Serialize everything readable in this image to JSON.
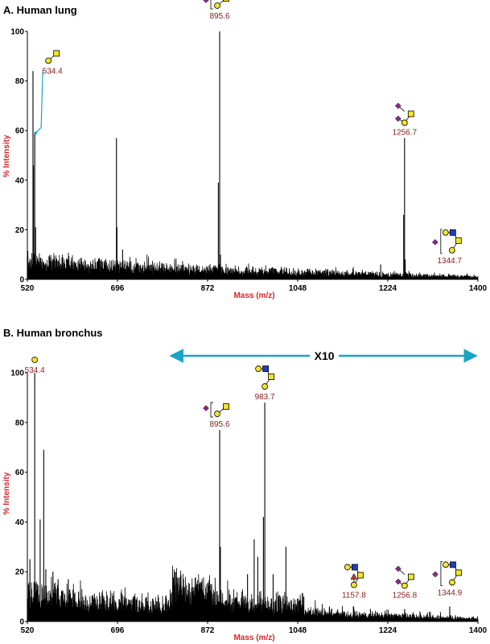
{
  "colors": {
    "axis_title": "#d62728",
    "peak_label": "#8b1a1a",
    "galactose": "#f2e52a",
    "galnac": "#f2e52a",
    "glcnac": "#1f3fbf",
    "sialic_acid": "#8b2a8b",
    "fucose": "#c0392b",
    "arrow": "#1aa3c4"
  },
  "chart_data": [
    {
      "type": "line",
      "title": "A. Human lung",
      "xlabel": "Mass (m/z)",
      "ylabel": "% Intensity",
      "xlim": [
        520,
        1400
      ],
      "ylim": [
        0,
        100
      ],
      "x_ticks": [
        520,
        696,
        872,
        1048,
        1224,
        1400
      ],
      "y_ticks": [
        0,
        20,
        40,
        60,
        80,
        100
      ],
      "grid": false,
      "baseline": {
        "start": 9,
        "end": 1,
        "noise": 3
      },
      "peaks": [
        {
          "x": 520,
          "y": 9
        },
        {
          "x": 531,
          "y": 84
        },
        {
          "x": 532,
          "y": 46
        },
        {
          "x": 534.4,
          "y": 59
        },
        {
          "x": 536,
          "y": 21
        },
        {
          "x": 545,
          "y": 6
        },
        {
          "x": 560,
          "y": 5
        },
        {
          "x": 580,
          "y": 4
        },
        {
          "x": 600,
          "y": 4
        },
        {
          "x": 630,
          "y": 5
        },
        {
          "x": 660,
          "y": 4
        },
        {
          "x": 694,
          "y": 57
        },
        {
          "x": 695,
          "y": 21
        },
        {
          "x": 706,
          "y": 12
        },
        {
          "x": 730,
          "y": 4
        },
        {
          "x": 790,
          "y": 3
        },
        {
          "x": 840,
          "y": 3
        },
        {
          "x": 893,
          "y": 39
        },
        {
          "x": 895.6,
          "y": 100
        },
        {
          "x": 897,
          "y": 10
        },
        {
          "x": 960,
          "y": 3
        },
        {
          "x": 1050,
          "y": 2
        },
        {
          "x": 1150,
          "y": 2
        },
        {
          "x": 1210,
          "y": 6
        },
        {
          "x": 1255,
          "y": 26
        },
        {
          "x": 1256.7,
          "y": 57
        },
        {
          "x": 1258,
          "y": 8
        },
        {
          "x": 1300,
          "y": 2
        },
        {
          "x": 1344.7,
          "y": 2
        }
      ],
      "annotations": [
        {
          "label": "534.4",
          "x": 534.4,
          "y": 59,
          "glycan": "gal-galnac"
        },
        {
          "label": "895.6",
          "x": 895.6,
          "y": 100,
          "glycan": "sia-gal-galnac"
        },
        {
          "label": "1256.7",
          "x": 1256.7,
          "y": 57,
          "glycan": "disia-gal-galnac"
        },
        {
          "label": "1344.7",
          "x": 1344.7,
          "y": 2,
          "glycan": "sia-core2"
        }
      ]
    },
    {
      "type": "line",
      "title": "B. Human bronchus",
      "xlabel": "Mass (m/z)",
      "ylabel": "% Intensity",
      "xlim": [
        520,
        1400
      ],
      "ylim": [
        0,
        100
      ],
      "x_ticks": [
        520,
        696,
        872,
        1048,
        1224,
        1400
      ],
      "y_ticks": [
        0,
        20,
        40,
        60,
        80,
        100
      ],
      "grid": false,
      "zoom_region": {
        "label": "X10",
        "from": 800,
        "to": 1400
      },
      "baseline": {
        "start": 13,
        "end": 1,
        "noise": 5
      },
      "peaks": [
        {
          "x": 520,
          "y": 20
        },
        {
          "x": 525,
          "y": 25
        },
        {
          "x": 534.4,
          "y": 100
        },
        {
          "x": 545,
          "y": 41
        },
        {
          "x": 552,
          "y": 69
        },
        {
          "x": 556,
          "y": 21
        },
        {
          "x": 570,
          "y": 20
        },
        {
          "x": 580,
          "y": 17
        },
        {
          "x": 600,
          "y": 17
        },
        {
          "x": 620,
          "y": 12
        },
        {
          "x": 650,
          "y": 9
        },
        {
          "x": 700,
          "y": 6
        },
        {
          "x": 760,
          "y": 6
        },
        {
          "x": 805,
          "y": 14
        },
        {
          "x": 825,
          "y": 17
        },
        {
          "x": 860,
          "y": 16
        },
        {
          "x": 880,
          "y": 15
        },
        {
          "x": 895.6,
          "y": 77
        },
        {
          "x": 897,
          "y": 30
        },
        {
          "x": 950,
          "y": 19
        },
        {
          "x": 963,
          "y": 33
        },
        {
          "x": 970,
          "y": 26
        },
        {
          "x": 981,
          "y": 42
        },
        {
          "x": 983.7,
          "y": 88
        },
        {
          "x": 1000,
          "y": 19
        },
        {
          "x": 1025,
          "y": 30
        },
        {
          "x": 1060,
          "y": 10
        },
        {
          "x": 1110,
          "y": 6
        },
        {
          "x": 1157.8,
          "y": 5
        },
        {
          "x": 1190,
          "y": 5
        },
        {
          "x": 1256.8,
          "y": 5
        },
        {
          "x": 1344.9,
          "y": 6
        }
      ],
      "annotations": [
        {
          "label": "534.4",
          "x": 534.4,
          "y": 100,
          "glycan": "gal"
        },
        {
          "label": "895.6",
          "x": 895.6,
          "y": 77,
          "glycan": "sia-gal-galnac"
        },
        {
          "label": "983.7",
          "x": 983.7,
          "y": 88,
          "glycan": "core2"
        },
        {
          "label": "1157.8",
          "x": 1157.8,
          "y": 5,
          "glycan": "fuc-core2"
        },
        {
          "label": "1256.8",
          "x": 1256.8,
          "y": 5,
          "glycan": "disia-gal-galnac"
        },
        {
          "label": "1344.9",
          "x": 1344.9,
          "y": 6,
          "glycan": "sia-core2"
        }
      ]
    }
  ]
}
